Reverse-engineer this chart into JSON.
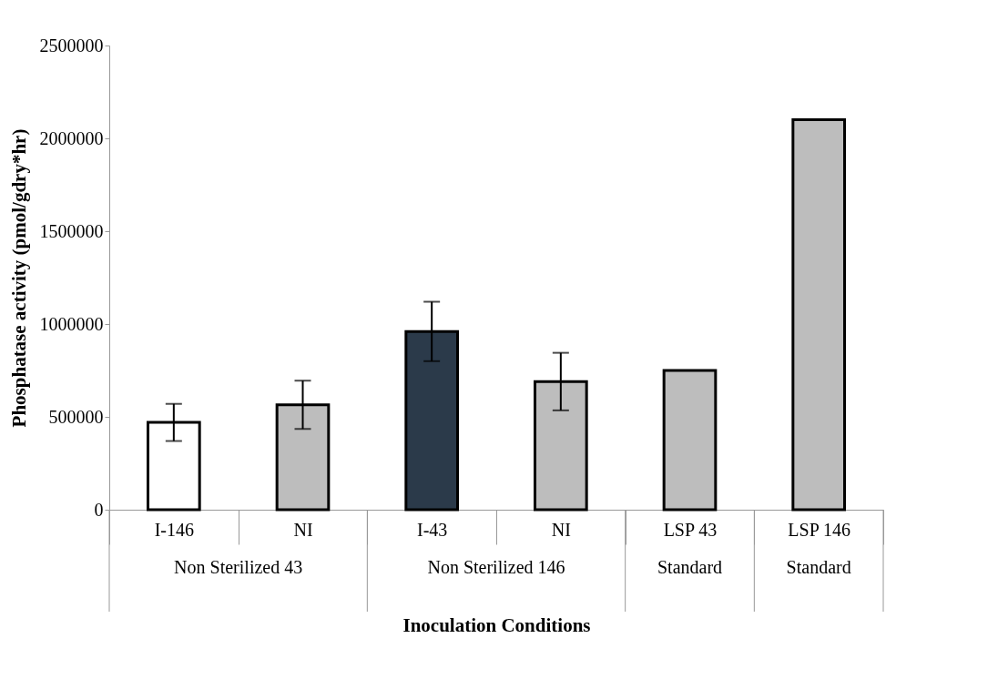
{
  "chart_data": {
    "type": "bar",
    "xlabel": "Inoculation Conditions",
    "ylabel": "Phosphatase activity (pmol/gdry*hr)",
    "categories": [
      "I-146",
      "NI",
      "I-43",
      "NI",
      "LSP 43",
      "LSP 146"
    ],
    "values": [
      470000,
      565000,
      960000,
      690000,
      750000,
      2100000
    ],
    "errors": [
      100000,
      130000,
      160000,
      155000,
      null,
      null
    ],
    "colors": [
      "#ffffff",
      "#bdbdbd",
      "#2b3a4a",
      "#bdbdbd",
      "#bdbdbd",
      "#bdbdbd"
    ],
    "ylim": [
      0,
      2500000
    ],
    "yticks": [
      0,
      500000,
      1000000,
      1500000,
      2000000,
      2500000
    ],
    "grid": false,
    "annotations": [
      "Non Sterilized 43",
      "Non Sterilized 146",
      "Standard",
      "Standard"
    ]
  }
}
